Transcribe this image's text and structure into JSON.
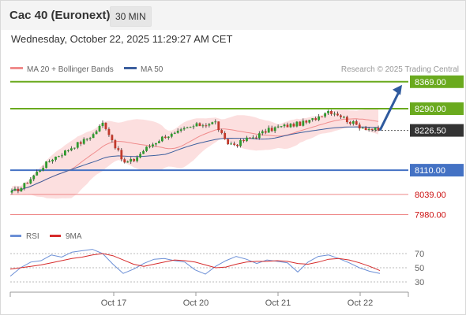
{
  "header": {
    "title": "Cac 40 (Euronext)",
    "timeframe": "30 MIN"
  },
  "timestamp": "Wednesday, October 22, 2025 11:29:27 AM CET",
  "legend": {
    "ma20": "MA 20 + Bollinger Bands",
    "ma50": "MA 50"
  },
  "copyright": "Research © 2025 Trading Central",
  "rsi_legend": {
    "rsi": "RSI",
    "ma": "9MA"
  },
  "colors": {
    "up": "#2e9a2e",
    "down": "#c0392b",
    "ma20": "#f08c8c",
    "ma50": "#3c5f9e",
    "bollinger": "#fcdcdc",
    "resistance": "#6aaa1e",
    "pivot": "#4472c4",
    "support": "#ee8888",
    "support_label": "#cc1111",
    "current_label": "#333333",
    "arrow": "#2f5a9e",
    "rsi_line": "#6b8fd6",
    "rsi_ma": "#d62b2b"
  },
  "chart_data": [
    {
      "type": "candlestick",
      "x_ticks": [
        "Oct 17",
        "Oct 20",
        "Oct 21",
        "Oct 22"
      ],
      "ylim": [
        7965,
        8380
      ],
      "levels": [
        {
          "value": 8369.0,
          "label": "8369.00",
          "kind": "resistance"
        },
        {
          "value": 8290.0,
          "label": "8290.00",
          "kind": "resistance"
        },
        {
          "value": 8226.5,
          "label": "8226.50",
          "kind": "current"
        },
        {
          "value": 8110.0,
          "label": "8110.00",
          "kind": "pivot"
        },
        {
          "value": 8039.0,
          "label": "8039.00",
          "kind": "support"
        },
        {
          "value": 7980.0,
          "label": "7980.00",
          "kind": "support"
        }
      ],
      "series": [
        {
          "name": "MA 20 + Bollinger Bands"
        },
        {
          "name": "MA 50"
        }
      ],
      "close_path": [
        8045,
        8060,
        8090,
        8120,
        8145,
        8160,
        8180,
        8195,
        8215,
        8250,
        8190,
        8130,
        8140,
        8170,
        8190,
        8210,
        8215,
        8230,
        8240,
        8245,
        8250,
        8190,
        8185,
        8200,
        8210,
        8225,
        8235,
        8240,
        8245,
        8250,
        8265,
        8285,
        8275,
        8255,
        8240,
        8232,
        8226.5
      ],
      "forecast_target": 8369.0
    },
    {
      "type": "line",
      "name": "RSI",
      "y_ticks": [
        70,
        50,
        30
      ],
      "ylim": [
        20,
        80
      ],
      "rsi": [
        38,
        50,
        58,
        60,
        68,
        65,
        72,
        74,
        76,
        70,
        55,
        42,
        48,
        56,
        62,
        63,
        60,
        58,
        47,
        41,
        52,
        60,
        66,
        62,
        56,
        61,
        59,
        57,
        44,
        58,
        66,
        68,
        63,
        57,
        50,
        45,
        42
      ],
      "rsi_ma": [
        48,
        50,
        52,
        54,
        57,
        60,
        63,
        65,
        68,
        70,
        67,
        61,
        55,
        52,
        55,
        58,
        61,
        60,
        58,
        54,
        50,
        51,
        55,
        58,
        59,
        59,
        60,
        59,
        56,
        55,
        58,
        62,
        63,
        61,
        57,
        52,
        46
      ]
    }
  ]
}
